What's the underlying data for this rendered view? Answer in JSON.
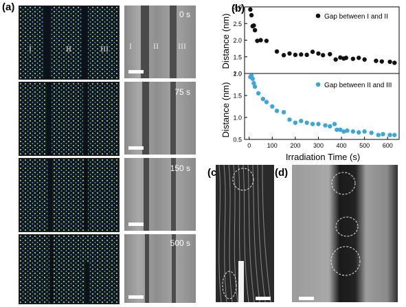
{
  "panels": {
    "a": "(a)",
    "b": "(b)",
    "c": "(c)",
    "d": "(d)"
  },
  "region_labels": [
    "I",
    "II",
    "III"
  ],
  "times": [
    "0 s",
    "75 s",
    "150 s",
    "500 s"
  ],
  "chart_data": [
    {
      "type": "scatter",
      "legend": "Gap between I and II",
      "ylabel": "Distance (nm)",
      "ylim": [
        1.0,
        3.0
      ],
      "yticks": [
        "1.0",
        "1.5",
        "2.0",
        "2.5",
        "3.0"
      ],
      "xlim": [
        -20,
        650
      ],
      "color": "#111111",
      "x": [
        5,
        10,
        15,
        20,
        25,
        35,
        50,
        75,
        120,
        150,
        175,
        200,
        225,
        250,
        275,
        300,
        320,
        350,
        375,
        395,
        410,
        420,
        450,
        475,
        500,
        550,
        575,
        610,
        630
      ],
      "y": [
        2.92,
        2.75,
        2.42,
        2.44,
        2.3,
        1.98,
        2.0,
        1.98,
        1.66,
        1.55,
        1.6,
        1.56,
        1.57,
        1.56,
        1.65,
        1.6,
        1.55,
        1.58,
        1.42,
        1.48,
        1.45,
        1.47,
        1.44,
        1.47,
        1.42,
        1.38,
        1.36,
        1.35,
        1.32
      ]
    },
    {
      "type": "scatter",
      "legend": "Gap between II and III",
      "ylabel": "Distance (nm)",
      "xlabel": "Irradiation Time (s)",
      "ylim": [
        0.5,
        2.0
      ],
      "yticks": [
        "0.5",
        "1.0",
        "1.5",
        "2.0"
      ],
      "xlim": [
        -20,
        650
      ],
      "xticks": [
        "0",
        "100",
        "200",
        "300",
        "400",
        "500",
        "600"
      ],
      "color": "#3aa7d8",
      "x": [
        5,
        10,
        15,
        20,
        25,
        40,
        60,
        75,
        100,
        120,
        150,
        175,
        200,
        225,
        250,
        275,
        300,
        330,
        350,
        370,
        380,
        395,
        410,
        425,
        450,
        475,
        500,
        530,
        560,
        580,
        610,
        630
      ],
      "y": [
        1.92,
        1.95,
        1.88,
        1.78,
        1.7,
        1.55,
        1.42,
        1.35,
        1.25,
        1.15,
        1.12,
        0.95,
        0.88,
        0.92,
        0.88,
        0.85,
        0.85,
        0.82,
        0.8,
        0.85,
        0.72,
        0.72,
        0.68,
        0.7,
        0.68,
        0.66,
        0.68,
        0.65,
        0.6,
        0.62,
        0.6,
        0.6
      ]
    }
  ]
}
